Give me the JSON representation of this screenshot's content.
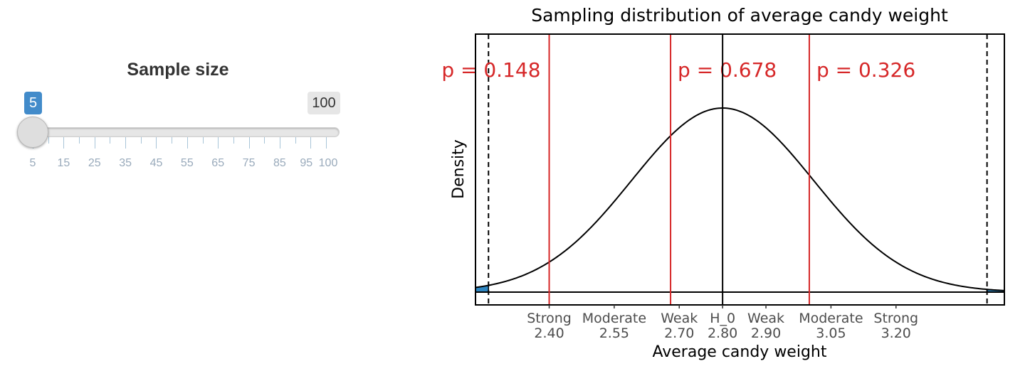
{
  "slider": {
    "label": "Sample size",
    "min": 5,
    "max": 100,
    "value": 5,
    "value_label": "5",
    "max_label": "100",
    "tick_labels": [
      "5",
      "15",
      "25",
      "35",
      "45",
      "55",
      "65",
      "75",
      "85",
      "95",
      "100"
    ],
    "accent_color": "#428bca",
    "max_badge_color": "#e6e6e6"
  },
  "chart_data": {
    "type": "line",
    "title": "Sampling distribution of average candy weight",
    "xlabel": "Average candy weight",
    "ylabel": "Density",
    "null_mean": 2.8,
    "curve_sd": 0.21,
    "xlim": [
      2.23,
      3.45
    ],
    "grid": false,
    "critical_values": [
      2.26,
      3.41
    ],
    "tail_fill_color": "#2e86c1",
    "vlines": [
      {
        "x": 2.4,
        "color": "#d62728",
        "p_label": "p = 0.148"
      },
      {
        "x": 2.68,
        "color": "#d62728",
        "p_label": "p = 0.678"
      },
      {
        "x": 3.0,
        "color": "#d62728",
        "p_label": "p = 0.326"
      },
      {
        "x": 2.8,
        "color": "#000000",
        "p_label": ""
      }
    ],
    "x_ticks": [
      {
        "x": 2.4,
        "top": "Strong",
        "bottom": "2.40"
      },
      {
        "x": 2.55,
        "top": "Moderate",
        "bottom": "2.55"
      },
      {
        "x": 2.7,
        "top": "Weak",
        "bottom": "2.70"
      },
      {
        "x": 2.8,
        "top": "H_0",
        "bottom": "2.80"
      },
      {
        "x": 2.9,
        "top": "Weak",
        "bottom": "2.90"
      },
      {
        "x": 3.05,
        "top": "Moderate",
        "bottom": "3.05"
      },
      {
        "x": 3.2,
        "top": "Strong",
        "bottom": "3.20"
      }
    ]
  }
}
